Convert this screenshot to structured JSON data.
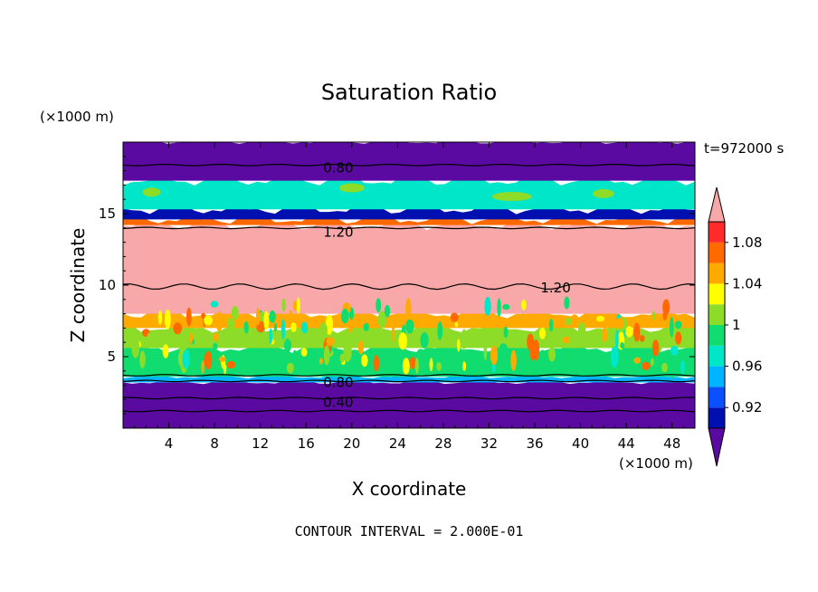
{
  "chart_data": {
    "type": "heatmap",
    "title": "Saturation Ratio",
    "xlabel": "X coordinate",
    "ylabel": "Z coordinate",
    "x_unit": "(×1000 m)",
    "y_unit": "(×1000 m)",
    "time_label": "t=972000 s",
    "footer": "CONTOUR INTERVAL = 2.000E-01",
    "xlim": [
      0,
      50
    ],
    "ylim": [
      0,
      20
    ],
    "x_ticks": [
      4,
      8,
      12,
      16,
      20,
      24,
      28,
      32,
      36,
      40,
      44,
      48
    ],
    "y_ticks": [
      5,
      10,
      15
    ],
    "contour_labels": [
      {
        "text": "0.80",
        "x": 17.5,
        "z": 18.2
      },
      {
        "text": "1.20",
        "x": 17.5,
        "z": 13.7
      },
      {
        "text": "1.20",
        "x": 36.5,
        "z": 9.8
      },
      {
        "text": "0.80",
        "x": 17.5,
        "z": 3.2
      },
      {
        "text": "0.40",
        "x": 17.5,
        "z": 1.8
      }
    ],
    "layers": [
      {
        "z0": 0.0,
        "z1": 3.2,
        "value": 0.88
      },
      {
        "z0": 3.2,
        "z1": 3.6,
        "value": 0.95
      },
      {
        "z0": 3.6,
        "z1": 5.6,
        "value": 0.99
      },
      {
        "z0": 5.6,
        "z1": 7.0,
        "value": 1.01
      },
      {
        "z0": 7.0,
        "z1": 8.0,
        "value": 1.05
      },
      {
        "z0": 8.0,
        "z1": 14.2,
        "value": 1.12
      },
      {
        "z0": 14.2,
        "z1": 14.6,
        "value": 1.06
      },
      {
        "z0": 14.6,
        "z1": 15.3,
        "value": 0.91
      },
      {
        "z0": 15.3,
        "z1": 17.3,
        "value": 0.97
      },
      {
        "z0": 17.3,
        "z1": 20.0,
        "value": 0.88
      }
    ],
    "colorbar": {
      "labels": [
        "1.08",
        "1.04",
        "1",
        "0.96",
        "0.92"
      ],
      "levels": [
        0.9,
        0.92,
        0.94,
        0.96,
        0.98,
        1.0,
        1.02,
        1.04,
        1.06,
        1.08,
        1.1
      ],
      "colors": [
        "#5a0aa0",
        "#0010b0",
        "#0a50ff",
        "#00b4ff",
        "#00e6c8",
        "#10dc70",
        "#8cdc28",
        "#ffff00",
        "#ffaa00",
        "#ff6a00",
        "#ff2a2a",
        "#f8a8a8"
      ]
    }
  }
}
